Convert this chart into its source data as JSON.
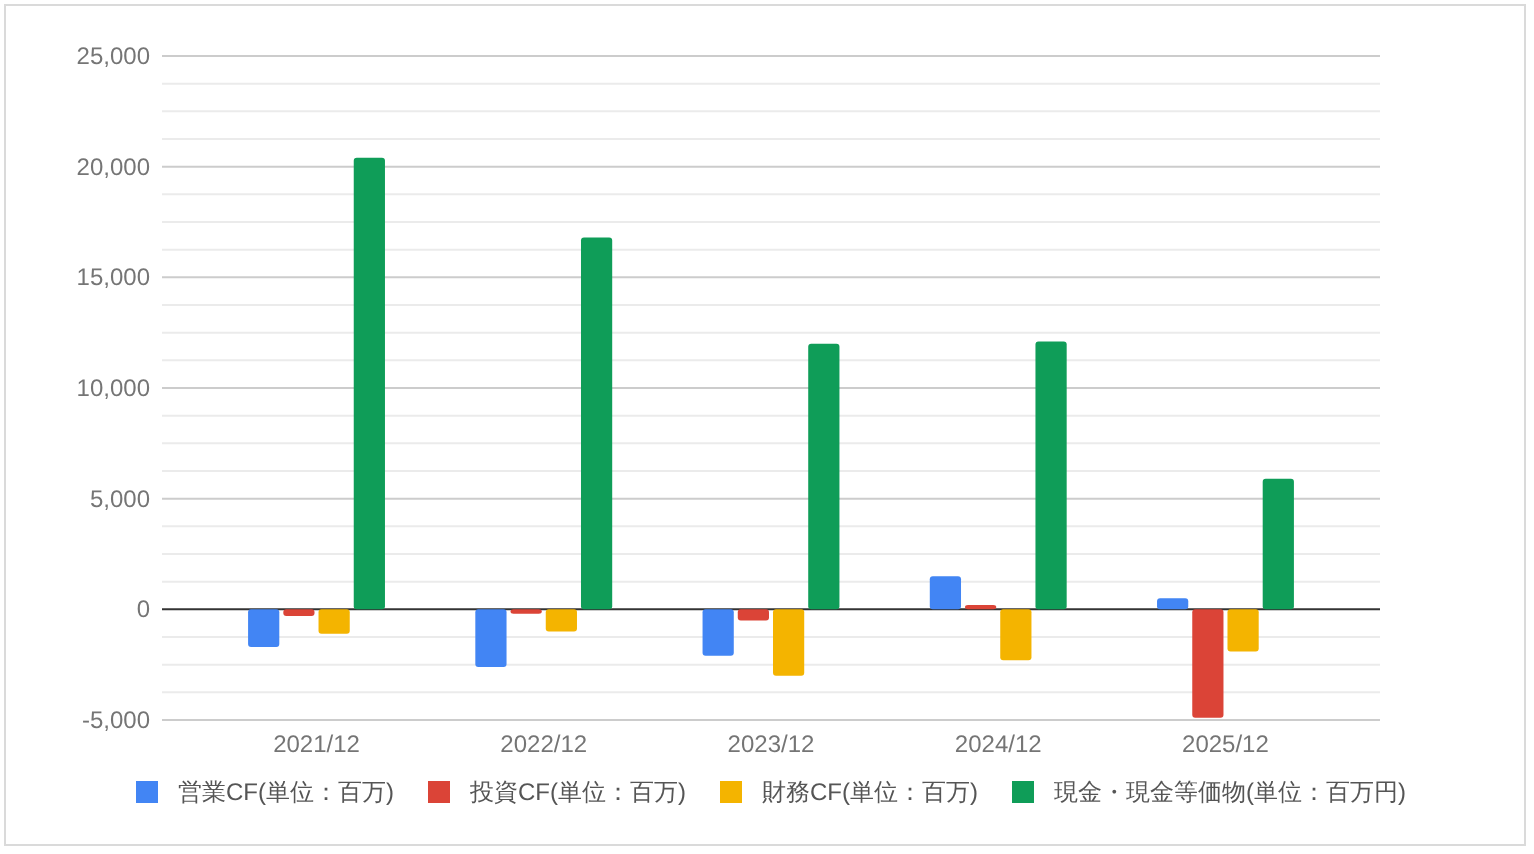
{
  "chart_data": {
    "type": "bar",
    "categories": [
      "2021/12",
      "2022/12",
      "2023/12",
      "2024/12",
      "2025/12"
    ],
    "series": [
      {
        "name": "営業CF(単位：百万)",
        "color": "#4285f4",
        "values": [
          -1700,
          -2600,
          -2100,
          1500,
          500
        ]
      },
      {
        "name": "投資CF(単位：百万)",
        "color": "#db4437",
        "values": [
          -300,
          -200,
          -500,
          200,
          -4900
        ]
      },
      {
        "name": "財務CF(単位：百万)",
        "color": "#f4b400",
        "values": [
          -1100,
          -1000,
          -3000,
          -2300,
          -1900
        ]
      },
      {
        "name": "現金・現金等価物(単位：百万円)",
        "color": "#0f9d58",
        "values": [
          20400,
          16800,
          12000,
          12100,
          5900
        ]
      }
    ],
    "ylim": [
      -5000,
      25000
    ],
    "yticks": [
      {
        "value": -5000,
        "label": "-5,000"
      },
      {
        "value": -3750,
        "label": null
      },
      {
        "value": -2500,
        "label": null
      },
      {
        "value": -1250,
        "label": null
      },
      0,
      {
        "value": 1250,
        "label": null
      },
      {
        "value": 2500,
        "label": null
      },
      {
        "value": 3750,
        "label": null
      },
      {
        "value": 5000,
        "label": "5,000"
      },
      {
        "value": 6250,
        "label": null
      },
      {
        "value": 7500,
        "label": null
      },
      {
        "value": 8750,
        "label": null
      },
      {
        "value": 10000,
        "label": "10,000"
      },
      {
        "value": 11250,
        "label": null
      },
      {
        "value": 12500,
        "label": null
      },
      {
        "value": 13750,
        "label": null
      },
      {
        "value": 15000,
        "label": "15,000"
      },
      {
        "value": 16250,
        "label": null
      },
      {
        "value": 17500,
        "label": null
      },
      {
        "value": 18750,
        "label": null
      },
      {
        "value": 20000,
        "label": "20,000"
      },
      {
        "value": 21250,
        "label": null
      },
      {
        "value": 22500,
        "label": null
      },
      {
        "value": 23750,
        "label": null
      },
      {
        "value": 25000,
        "label": "25,000"
      }
    ],
    "grid": "y",
    "legend": "bottom"
  }
}
